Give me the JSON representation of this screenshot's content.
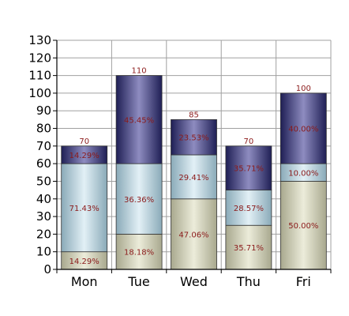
{
  "chart_data": {
    "type": "bar",
    "stacked": true,
    "categories": [
      "Mon",
      "Tue",
      "Wed",
      "Thu",
      "Fri"
    ],
    "series": [
      {
        "values": [
          10,
          20,
          40,
          25,
          50
        ],
        "labels": [
          "14.29%",
          "18.18%",
          "47.06%",
          "35.71%",
          "50.00%"
        ],
        "color": "#c4c4ac"
      },
      {
        "values": [
          50,
          40,
          25,
          20,
          10
        ],
        "labels": [
          "71.43%",
          "36.36%",
          "29.41%",
          "28.57%",
          "10.00%"
        ],
        "color": "#a9c6d2"
      },
      {
        "values": [
          10,
          50,
          20,
          25,
          40
        ],
        "labels": [
          "14.29%",
          "45.45%",
          "23.53%",
          "35.71%",
          "40.00%"
        ],
        "color": "#2e2e6e"
      }
    ],
    "totals": [
      "70",
      "110",
      "85",
      "70",
      "100"
    ],
    "ylim": [
      0,
      130
    ],
    "yticks": [
      "0",
      "10",
      "20",
      "30",
      "40",
      "50",
      "60",
      "70",
      "80",
      "90",
      "100",
      "110",
      "120",
      "130"
    ],
    "grid": true,
    "title": "",
    "xlabel": "",
    "ylabel": ""
  }
}
